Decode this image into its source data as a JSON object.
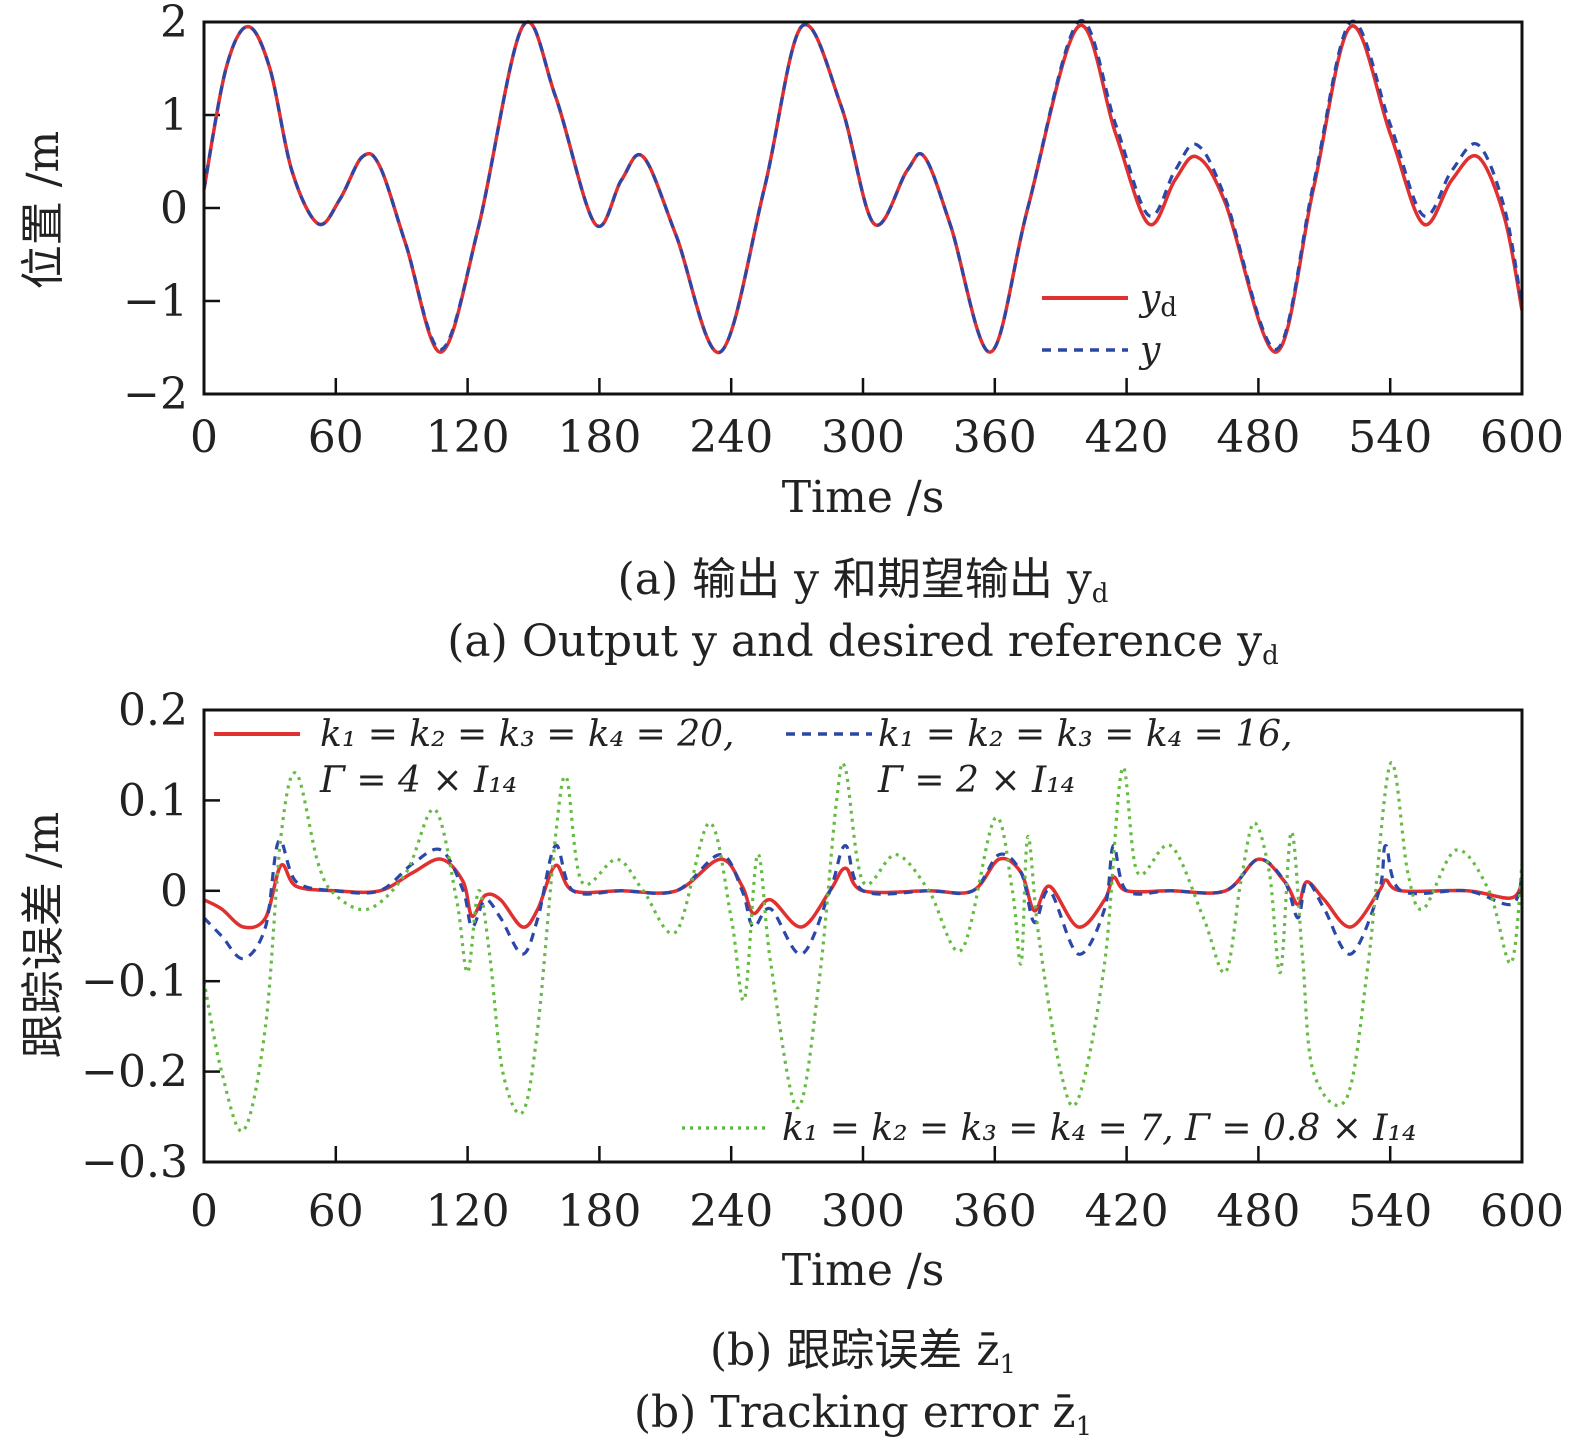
{
  "colors": {
    "series_solid": "#e03030",
    "series_dashed": "#2b47a8",
    "series_dotted": "#66bb44",
    "axis": "#111111"
  },
  "panel_a": {
    "caption_cn": "(a) 输出 y 和期望输出 y",
    "caption_cn_sub": "d",
    "caption_en": "(a) Output y and desired reference y",
    "caption_en_sub": "d"
  },
  "panel_b": {
    "caption_cn": "(b) 跟踪误差 z̄",
    "caption_cn_sub": "1",
    "caption_en": "(b) Tracking error z̄",
    "caption_en_sub": "1"
  },
  "chart_data": [
    {
      "type": "line",
      "xlabel": "Time /s",
      "ylabel": "位置 /m",
      "xlim": [
        0,
        600
      ],
      "ylim": [
        -2,
        2
      ],
      "xticks": [
        "0",
        "60",
        "120",
        "180",
        "240",
        "300",
        "360",
        "420",
        "480",
        "540",
        "600"
      ],
      "yticks": [
        "2",
        "1",
        "0",
        "−1",
        "−2"
      ],
      "legend_position": "lower-right",
      "series": [
        {
          "name": "y_d",
          "label_main": "y",
          "label_sub": "d",
          "style": "solid",
          "x": [
            0,
            10,
            20,
            30,
            40,
            52,
            62,
            72,
            80,
            92,
            108,
            125,
            145,
            160,
            178,
            190,
            200,
            215,
            235,
            255,
            272,
            290,
            305,
            320,
            328,
            340,
            358,
            375,
            398,
            415,
            430,
            442,
            452,
            465,
            488,
            505,
            522,
            540,
            555,
            568,
            580,
            592,
            600
          ],
          "y": [
            0.2,
            1.5,
            1.95,
            1.5,
            0.4,
            -0.17,
            0.1,
            0.55,
            0.45,
            -0.4,
            -1.55,
            -0.2,
            1.95,
            1.2,
            -0.17,
            0.3,
            0.55,
            -0.3,
            -1.55,
            0.2,
            1.95,
            1.1,
            -0.17,
            0.4,
            0.55,
            -0.2,
            -1.55,
            0.0,
            1.95,
            0.8,
            -0.17,
            0.3,
            0.55,
            0.05,
            -1.55,
            0.2,
            1.95,
            0.8,
            -0.17,
            0.3,
            0.55,
            -0.1,
            -1.1
          ]
        },
        {
          "name": "y",
          "label_main": "y",
          "label_sub": "",
          "style": "dashed",
          "x": [
            0,
            10,
            20,
            30,
            40,
            52,
            62,
            72,
            80,
            92,
            108,
            125,
            145,
            160,
            178,
            190,
            200,
            215,
            235,
            255,
            272,
            290,
            305,
            320,
            328,
            340,
            358,
            375,
            398,
            415,
            430,
            442,
            452,
            465,
            488,
            505,
            522,
            540,
            555,
            568,
            580,
            592,
            600
          ],
          "y": [
            0.2,
            1.5,
            1.95,
            1.5,
            0.4,
            -0.17,
            0.1,
            0.55,
            0.45,
            -0.4,
            -1.52,
            -0.2,
            1.95,
            1.2,
            -0.17,
            0.3,
            0.55,
            -0.3,
            -1.55,
            0.2,
            1.95,
            1.1,
            -0.17,
            0.4,
            0.55,
            -0.2,
            -1.55,
            0.0,
            2.12,
            0.9,
            -0.08,
            0.4,
            0.68,
            0.1,
            -1.52,
            0.25,
            2.12,
            0.9,
            -0.08,
            0.4,
            0.68,
            0.0,
            -1.05
          ]
        }
      ]
    },
    {
      "type": "line",
      "xlabel": "Time /s",
      "ylabel": "跟踪误差 /m",
      "xlim": [
        0,
        600
      ],
      "ylim": [
        -0.3,
        0.2
      ],
      "xticks": [
        "0",
        "60",
        "120",
        "180",
        "240",
        "300",
        "360",
        "420",
        "480",
        "540",
        "600"
      ],
      "yticks": [
        "0.2",
        "0.1",
        "0",
        "−0.1",
        "−0.2",
        "−0.3"
      ],
      "legend_position": "top",
      "series": [
        {
          "name": "k1 = k2 = k3 = k4 = 20, Γ = 4 × I14",
          "style": "solid",
          "legend_line1": "k₁ = k₂ = k₃ = k₄ = 20,",
          "legend_line2": "Γ = 4 × I₁₄",
          "x": [
            0,
            8,
            18,
            28,
            35,
            42,
            60,
            80,
            95,
            108,
            118,
            122,
            128,
            135,
            145,
            152,
            160,
            168,
            190,
            215,
            235,
            245,
            250,
            258,
            272,
            285,
            292,
            300,
            330,
            350,
            362,
            372,
            378,
            385,
            398,
            410,
            414,
            420,
            440,
            465,
            480,
            492,
            498,
            502,
            510,
            522,
            535,
            538,
            545,
            575,
            595,
            600
          ],
          "y": [
            -0.01,
            -0.02,
            -0.04,
            -0.03,
            0.028,
            0.005,
            0.0,
            0.0,
            0.02,
            0.035,
            0.01,
            -0.028,
            -0.005,
            -0.01,
            -0.04,
            -0.02,
            0.028,
            0.0,
            0.0,
            0.0,
            0.035,
            0.005,
            -0.025,
            -0.01,
            -0.04,
            0.0,
            0.025,
            0.0,
            0.0,
            0.0,
            0.035,
            0.02,
            -0.022,
            0.005,
            -0.04,
            -0.01,
            0.015,
            0.0,
            0.0,
            0.0,
            0.035,
            0.01,
            -0.015,
            0.01,
            -0.01,
            -0.04,
            0.0,
            0.012,
            0.0,
            0.0,
            -0.008,
            0.01
          ]
        },
        {
          "name": "k1 = k2 = k3 = k4 = 16, Γ = 2 × I14",
          "style": "dashed",
          "legend_line1": "k₁ = k₂ = k₃ = k₄ = 16,",
          "legend_line2": "Γ = 2 × I₁₄",
          "x": [
            0,
            8,
            18,
            28,
            34,
            42,
            60,
            80,
            95,
            108,
            118,
            122,
            128,
            135,
            145,
            152,
            160,
            168,
            190,
            215,
            235,
            245,
            250,
            258,
            272,
            285,
            292,
            300,
            330,
            350,
            362,
            372,
            378,
            385,
            398,
            410,
            414,
            420,
            440,
            465,
            480,
            492,
            498,
            502,
            510,
            522,
            535,
            538,
            545,
            575,
            595,
            600
          ],
          "y": [
            -0.03,
            -0.05,
            -0.075,
            -0.04,
            0.055,
            0.01,
            0.0,
            0.0,
            0.03,
            0.045,
            0.0,
            -0.04,
            -0.01,
            -0.03,
            -0.07,
            -0.03,
            0.05,
            0.0,
            0.0,
            0.0,
            0.04,
            0.0,
            -0.04,
            -0.02,
            -0.07,
            0.0,
            0.05,
            0.0,
            0.0,
            0.0,
            0.04,
            0.02,
            -0.035,
            0.0,
            -0.07,
            -0.02,
            0.05,
            0.0,
            0.0,
            0.0,
            0.035,
            0.01,
            -0.03,
            0.01,
            -0.02,
            -0.07,
            0.0,
            0.05,
            0.0,
            0.0,
            -0.015,
            0.015
          ]
        },
        {
          "name": "k1 = k2 = k3 = k4 = 7, Γ = 0.8 × I14",
          "style": "dotted",
          "legend_line1": "k₁ = k₂ = k₃ = k₄ = 7, Γ = 0.8 × I₁₄",
          "x": [
            0,
            8,
            18,
            28,
            35,
            42,
            52,
            60,
            75,
            92,
            105,
            115,
            120,
            125,
            130,
            136,
            145,
            152,
            160,
            165,
            172,
            188,
            200,
            215,
            230,
            240,
            246,
            252,
            258,
            270,
            280,
            288,
            292,
            300,
            315,
            330,
            345,
            360,
            368,
            372,
            375,
            380,
            390,
            398,
            410,
            418,
            425,
            440,
            455,
            465,
            472,
            478,
            485,
            490,
            495,
            500,
            505,
            520,
            530,
            540,
            548,
            555,
            570,
            585,
            595,
            600
          ],
          "y": [
            -0.1,
            -0.2,
            -0.265,
            -0.15,
            0.06,
            0.13,
            0.03,
            -0.005,
            -0.02,
            0.02,
            0.09,
            -0.01,
            -0.09,
            0.0,
            -0.07,
            -0.2,
            -0.245,
            -0.15,
            0.06,
            0.125,
            0.01,
            0.035,
            0.0,
            -0.045,
            0.075,
            -0.03,
            -0.12,
            0.04,
            -0.08,
            -0.24,
            -0.1,
            0.1,
            0.135,
            0.01,
            0.04,
            0.0,
            -0.065,
            0.08,
            0.0,
            -0.08,
            0.06,
            -0.05,
            -0.2,
            -0.23,
            -0.08,
            0.135,
            0.02,
            0.05,
            -0.03,
            -0.09,
            0.01,
            0.075,
            0.02,
            -0.09,
            0.065,
            -0.07,
            -0.2,
            -0.23,
            -0.08,
            0.14,
            0.02,
            -0.02,
            0.045,
            0.0,
            -0.08,
            0.03
          ]
        }
      ]
    }
  ]
}
